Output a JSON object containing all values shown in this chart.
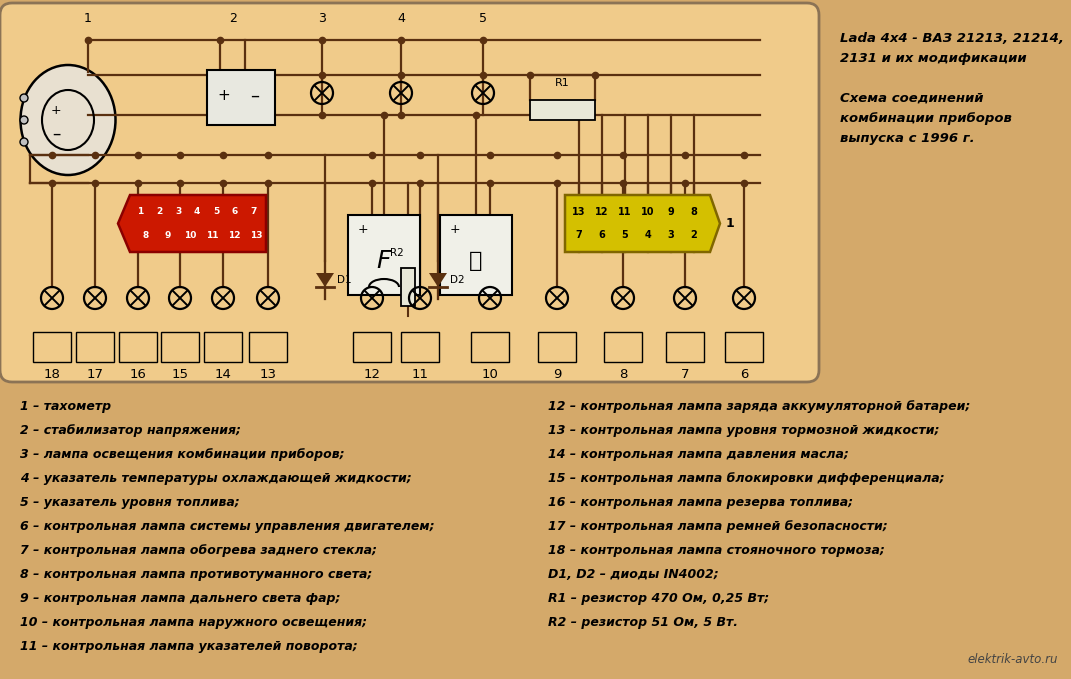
{
  "bg_color": "#d4a96a",
  "panel_bg": "#f0cb8a",
  "panel_edge": "#8B7355",
  "wire_color": "#5a3010",
  "title_line1": "Lada 4x4 - ВАЗ 21213, 21214,",
  "title_line2": "2131 и их модификации",
  "subtitle_line1": "Схема соединений",
  "subtitle_line2": "комбинации приборов",
  "subtitle_line3": "выпуска с 1996 г.",
  "watermark": "elektrik-avto.ru",
  "legend_left": [
    "1 – тахометр",
    "2 – стабилизатор напряжения;",
    "3 – лампа освещения комбинации приборов;",
    "4 – указатель температуры охлаждающей жидкости;",
    "5 – указатель уровня топлива;",
    "6 – контрольная лампа системы управления двигателем;",
    "7 – контрольная лампа обогрева заднего стекла;",
    "8 – контрольная лампа противотуманного света;",
    "9 – контрольная лампа дальнего света фар;",
    "10 – контрольная лампа наружного освещения;",
    "11 – контрольная лампа указателей поворота;"
  ],
  "legend_right": [
    "12 – контрольная лампа заряда аккумуляторной батареи;",
    "13 – контрольная лампа уровня тормозной жидкости;",
    "14 – контрольная лампа давления масла;",
    "15 – контрольная лампа блокировки дифференциала;",
    "16 – контрольная лампа резерва топлива;",
    "17 – контрольная лампа ремней безопасности;",
    "18 – контрольная лампа стояночного тормоза;",
    "D1, D2 – диоды IN4002;",
    "R1 – резистор 470 Ом, 0,25 Вт;",
    "R2 – резистор 51 Ом, 5 Вт."
  ],
  "bottom_labels": [
    "18",
    "17",
    "16",
    "15",
    "14",
    "13",
    "12",
    "11",
    "10",
    "9",
    "8",
    "7",
    "6"
  ],
  "top_labels": [
    "1",
    "2",
    "3",
    "4",
    "5"
  ],
  "red_top": [
    "1",
    "2",
    "3",
    "4",
    "5",
    "6",
    "7"
  ],
  "red_bot": [
    "8",
    "9",
    "10",
    "11",
    "12",
    "13"
  ],
  "yel_top": [
    "13",
    "12",
    "11",
    "10",
    "9",
    "8"
  ],
  "yel_bot": [
    "7",
    "6",
    "5",
    "4",
    "3",
    "2"
  ]
}
